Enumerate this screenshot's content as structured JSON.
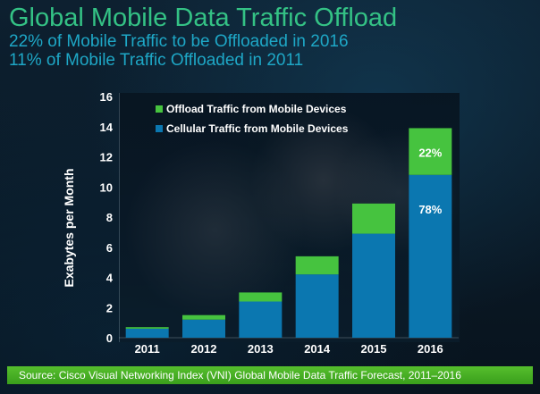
{
  "slide": {
    "title": "Global Mobile Data Traffic Offload",
    "subtitle_1": "22% of Mobile Traffic to be Offloaded in 2016",
    "subtitle_2": "11% of Mobile Traffic Offloaded in 2011",
    "source": "Source: Cisco Visual Networking Index (VNI) Global Mobile Data Traffic Forecast, 2011–2016"
  },
  "colors": {
    "title": "#34c285",
    "subtitle": "#1ea7c6",
    "offload": "#46c33f",
    "cellular": "#0b77b0",
    "source_bar": "#4fb529"
  },
  "chart_data": {
    "type": "bar",
    "stacked": true,
    "categories": [
      "2011",
      "2012",
      "2013",
      "2014",
      "2015",
      "2016"
    ],
    "series": [
      {
        "name": "Cellular Traffic from Mobile Devices",
        "values": [
          0.6,
          1.2,
          2.4,
          4.2,
          6.9,
          10.8
        ]
      },
      {
        "name": "Offload Traffic from Mobile Devices",
        "values": [
          0.1,
          0.3,
          0.6,
          1.2,
          2.0,
          3.1
        ]
      }
    ],
    "legend_position": "top-left",
    "ylabel": "Exabytes per Month",
    "ylim": [
      0,
      16
    ],
    "yticks": [
      0,
      2,
      4,
      6,
      8,
      10,
      12,
      14,
      16
    ],
    "annotations": [
      {
        "category": "2016",
        "series": "Offload Traffic from Mobile Devices",
        "text": "22%"
      },
      {
        "category": "2016",
        "series": "Cellular Traffic from Mobile Devices",
        "text": "78%"
      }
    ],
    "grid": false
  }
}
